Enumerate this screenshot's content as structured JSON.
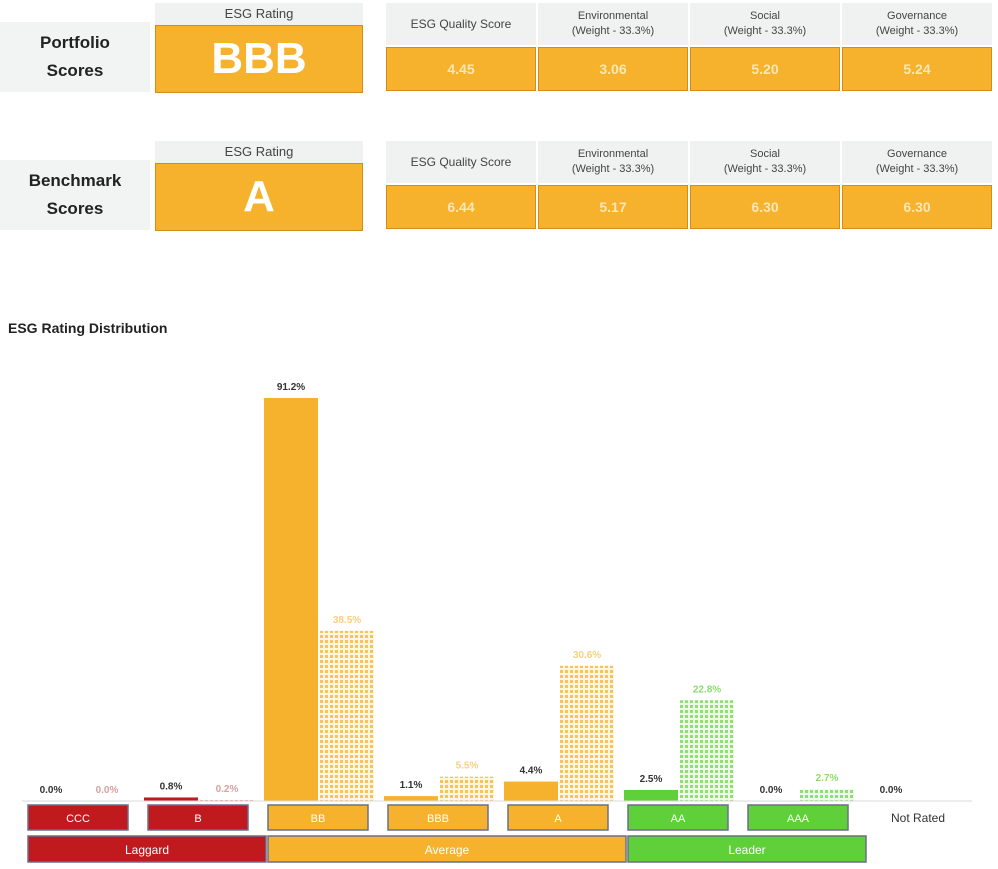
{
  "portfolio": {
    "label_line1": "Portfolio",
    "label_line2": "Scores",
    "rating_header": "ESG Rating",
    "rating": "BBB",
    "columns": [
      {
        "line1": "ESG Quality Score",
        "line2": "",
        "value": "4.45"
      },
      {
        "line1": "Environmental",
        "line2": "(Weight - 33.3%)",
        "value": "3.06"
      },
      {
        "line1": "Social",
        "line2": "(Weight - 33.3%)",
        "value": "5.20"
      },
      {
        "line1": "Governance",
        "line2": "(Weight - 33.3%)",
        "value": "5.24"
      }
    ]
  },
  "benchmark": {
    "label_line1": "Benchmark",
    "label_line2": "Scores",
    "rating_header": "ESG Rating",
    "rating": "A",
    "columns": [
      {
        "line1": "ESG Quality Score",
        "line2": "",
        "value": "6.44"
      },
      {
        "line1": "Environmental",
        "line2": "(Weight - 33.3%)",
        "value": "5.17"
      },
      {
        "line1": "Social",
        "line2": "(Weight - 33.3%)",
        "value": "6.30"
      },
      {
        "line1": "Governance",
        "line2": "(Weight - 33.3%)",
        "value": "6.30"
      }
    ]
  },
  "chart_data": {
    "type": "bar",
    "title": "ESG Rating Distribution",
    "categories": [
      "CCC",
      "B",
      "BB",
      "BBB",
      "A",
      "AA",
      "AAA",
      "Not Rated"
    ],
    "series": [
      {
        "values": [
          0.0,
          0.8,
          91.2,
          1.1,
          4.4,
          2.5,
          0.0,
          0.0
        ],
        "labels": [
          "0.0%",
          "0.8%",
          "91.2%",
          "1.1%",
          "4.4%",
          "2.5%",
          "0.0%",
          "0.0%"
        ]
      },
      {
        "values": [
          0.0,
          0.2,
          38.5,
          5.5,
          30.6,
          22.8,
          2.7,
          null
        ],
        "labels": [
          "0.0%",
          "0.2%",
          "38.5%",
          "5.5%",
          "30.6%",
          "22.8%",
          "2.7%",
          ""
        ]
      }
    ],
    "category_colors": [
      "#c0191e",
      "#c0191e",
      "#f6b22c",
      "#f6b22c",
      "#f6b22c",
      "#5fcf3a",
      "#5fcf3a",
      "#ffffff"
    ],
    "groups": [
      {
        "name": "Laggard",
        "categories": [
          "CCC",
          "B"
        ],
        "color": "#c0191e"
      },
      {
        "name": "Average",
        "categories": [
          "BB",
          "BBB",
          "A"
        ],
        "color": "#f6b22c"
      },
      {
        "name": "Leader",
        "categories": [
          "AA",
          "AAA"
        ],
        "color": "#5fcf3a"
      }
    ],
    "ylim": [
      0,
      100
    ]
  }
}
